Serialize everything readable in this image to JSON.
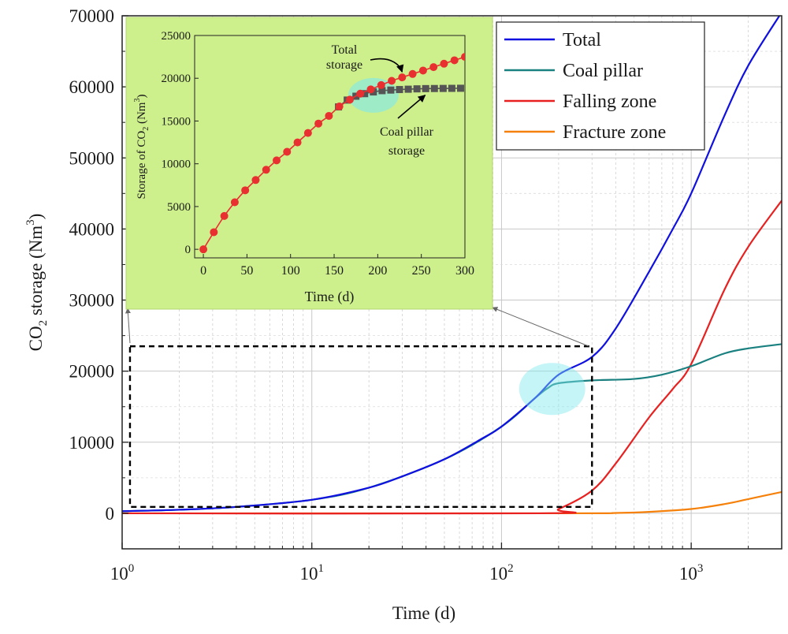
{
  "chart_data": [
    {
      "type": "line",
      "xscale": "log",
      "xlabel": "Time (d)",
      "ylabel": "CO2 storage (Nm3)",
      "ylabel_parts": {
        "pre": "CO",
        "sub": "2",
        "mid": " storage (Nm",
        "sup": "3",
        "post": ")"
      },
      "xlim": [
        1,
        3000
      ],
      "ylim": [
        -5000,
        70000
      ],
      "x_ticks": [
        {
          "value": 1,
          "base": "10",
          "exp": "0"
        },
        {
          "value": 10,
          "base": "10",
          "exp": "1"
        },
        {
          "value": 100,
          "base": "10",
          "exp": "2"
        },
        {
          "value": 1000,
          "base": "10",
          "exp": "3"
        }
      ],
      "y_ticks": [
        "0",
        "10000",
        "20000",
        "30000",
        "40000",
        "50000",
        "60000",
        "70000"
      ],
      "grid": true,
      "legend_position": "top-right",
      "series": [
        {
          "name": "Total",
          "color": "#1010e0",
          "points": [
            [
              1,
              300
            ],
            [
              2,
              500
            ],
            [
              4,
              900
            ],
            [
              10,
              1900
            ],
            [
              20,
              3600
            ],
            [
              30,
              5200
            ],
            [
              50,
              7600
            ],
            [
              80,
              10600
            ],
            [
              100,
              12200
            ],
            [
              150,
              16200
            ],
            [
              200,
              19500
            ],
            [
              300,
              22000
            ],
            [
              400,
              26000
            ],
            [
              600,
              34000
            ],
            [
              800,
              40000
            ],
            [
              1000,
              45000
            ],
            [
              1500,
              56000
            ],
            [
              2000,
              63000
            ],
            [
              3000,
              70500
            ]
          ]
        },
        {
          "name": "Coal pillar",
          "color": "#1a8080",
          "points": [
            [
              1,
              300
            ],
            [
              2,
              500
            ],
            [
              4,
              900
            ],
            [
              10,
              1900
            ],
            [
              20,
              3600
            ],
            [
              50,
              7600
            ],
            [
              100,
              12200
            ],
            [
              150,
              16200
            ],
            [
              175,
              17600
            ],
            [
              200,
              18300
            ],
            [
              300,
              18700
            ],
            [
              500,
              18900
            ],
            [
              700,
              19500
            ],
            [
              1000,
              20700
            ],
            [
              1500,
              22500
            ],
            [
              2000,
              23200
            ],
            [
              3000,
              23800
            ]
          ]
        },
        {
          "name": "Falling zone",
          "color": "#e82020",
          "points": [
            [
              1,
              0
            ],
            [
              160,
              0
            ],
            [
              200,
              600
            ],
            [
              300,
              3200
            ],
            [
              400,
              7000
            ],
            [
              600,
              13500
            ],
            [
              800,
              17500
            ],
            [
              1000,
              21000
            ],
            [
              1500,
              31500
            ],
            [
              2000,
              37500
            ],
            [
              3000,
              44000
            ]
          ]
        },
        {
          "name": "Fracture zone",
          "color": "#f5800a",
          "points": [
            [
              1,
              0
            ],
            [
              200,
              0
            ],
            [
              400,
              50
            ],
            [
              600,
              200
            ],
            [
              1000,
              600
            ],
            [
              1500,
              1300
            ],
            [
              2000,
              2000
            ],
            [
              3000,
              3000
            ]
          ]
        }
      ],
      "annotations": {
        "zoom_box": {
          "x": [
            1.1,
            300
          ],
          "y": [
            900,
            23500
          ]
        },
        "highlight_center": [
          185,
          17500
        ]
      }
    },
    {
      "type": "line",
      "role": "inset",
      "xlabel": "Time (d)",
      "ylabel": "Storage of CO2 (Nm3)",
      "ylabel_parts": {
        "pre": "Storage of CO",
        "sub": "2",
        "mid": " (Nm",
        "sup": "3",
        "post": ")"
      },
      "xlim": [
        -10,
        300
      ],
      "ylim": [
        -1000,
        25000
      ],
      "x_ticks": [
        "0",
        "50",
        "100",
        "150",
        "200",
        "250",
        "300"
      ],
      "y_ticks": [
        "0",
        "5000",
        "10000",
        "15000",
        "20000",
        "25000"
      ],
      "series": [
        {
          "name": "Coal pillar storage",
          "color": "#555555",
          "marker": "square",
          "points": [
            [
              155,
              16650
            ],
            [
              165,
              17450
            ],
            [
              175,
              17900
            ],
            [
              185,
              18200
            ],
            [
              195,
              18400
            ],
            [
              205,
              18550
            ],
            [
              215,
              18620
            ],
            [
              225,
              18680
            ],
            [
              235,
              18720
            ],
            [
              245,
              18760
            ],
            [
              255,
              18790
            ],
            [
              265,
              18800
            ],
            [
              275,
              18810
            ],
            [
              285,
              18820
            ],
            [
              295,
              18830
            ]
          ]
        },
        {
          "name": "Total storage",
          "color": "#e83030",
          "marker": "circle",
          "points": [
            [
              0,
              0
            ],
            [
              12,
              2000
            ],
            [
              24,
              3900
            ],
            [
              36,
              5500
            ],
            [
              48,
              6900
            ],
            [
              60,
              8100
            ],
            [
              72,
              9300
            ],
            [
              84,
              10400
            ],
            [
              96,
              11400
            ],
            [
              108,
              12500
            ],
            [
              120,
              13600
            ],
            [
              132,
              14700
            ],
            [
              144,
              15600
            ],
            [
              156,
              16700
            ],
            [
              168,
              17500
            ],
            [
              180,
              18200
            ],
            [
              192,
              18700
            ],
            [
              204,
              19200
            ],
            [
              216,
              19700
            ],
            [
              228,
              20100
            ],
            [
              240,
              20500
            ],
            [
              252,
              20900
            ],
            [
              264,
              21300
            ],
            [
              276,
              21700
            ],
            [
              288,
              22100
            ],
            [
              300,
              22500
            ]
          ]
        }
      ],
      "annotations": [
        {
          "text_lines": [
            "Total",
            "storage"
          ],
          "arrow_to": [
            227,
            20100
          ]
        },
        {
          "text_lines": [
            "Coal pillar",
            "storage"
          ],
          "arrow_to": [
            258,
            18750
          ]
        }
      ],
      "highlight_center": [
        195,
        18000
      ]
    }
  ]
}
